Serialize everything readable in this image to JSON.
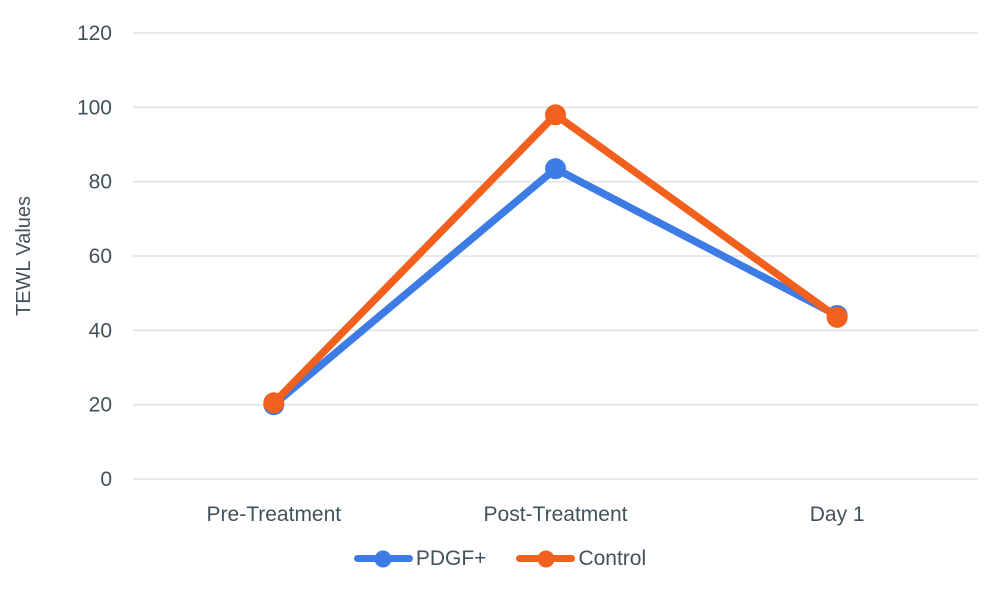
{
  "chart_data": {
    "type": "line",
    "title": "",
    "xlabel": "",
    "ylabel": "TEWL Values",
    "categories": [
      "Pre-Treatment",
      "Post-Treatment",
      "Day 1"
    ],
    "series": [
      {
        "name": "PDGF+",
        "color": "#3D7BE5",
        "values": [
          20,
          83.5,
          44
        ]
      },
      {
        "name": "Control",
        "color": "#F2601D",
        "values": [
          20.5,
          98,
          43.5
        ]
      }
    ],
    "yticks": [
      0,
      20,
      40,
      60,
      80,
      100,
      120
    ],
    "ylim": [
      0,
      120
    ],
    "grid": true,
    "legend_position": "bottom",
    "marker": "circle"
  },
  "style": {
    "background": "#FFFFFF",
    "text_color": "#42525A",
    "grid_color": "#DDE3E6"
  }
}
